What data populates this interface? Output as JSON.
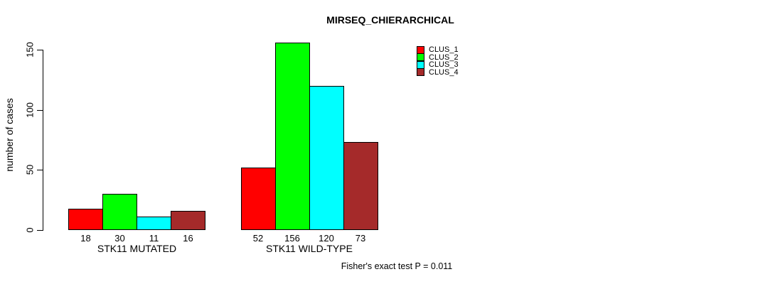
{
  "chart_data": {
    "type": "bar",
    "title": "MIRSEQ_CHIERARCHICAL",
    "ylabel": "number of cases",
    "xlabel": "",
    "yticks": [
      "0",
      "50",
      "100",
      "150"
    ],
    "ylim": [
      0,
      160
    ],
    "grid": false,
    "legend_position": "top-right-inside",
    "categories": [
      "STK11 MUTATED",
      "STK11 WILD-TYPE"
    ],
    "series": [
      {
        "name": "CLUS_1",
        "color": "#FF0000",
        "values": [
          18,
          52
        ]
      },
      {
        "name": "CLUS_2",
        "color": "#00FF00",
        "values": [
          30,
          156
        ]
      },
      {
        "name": "CLUS_3",
        "color": "#00FFFF",
        "values": [
          11,
          120
        ]
      },
      {
        "name": "CLUS_4",
        "color": "#A52A2A",
        "values": [
          16,
          73
        ]
      }
    ],
    "bar_value_labels": [
      [
        18,
        30,
        11,
        16
      ],
      [
        52,
        156,
        120,
        73
      ]
    ],
    "annotation": "Fisher's exact test P = 0.011"
  },
  "style": {
    "bar_border_color": "#000000",
    "axis_color": "#000000",
    "background_color": "#FFFFFF"
  }
}
